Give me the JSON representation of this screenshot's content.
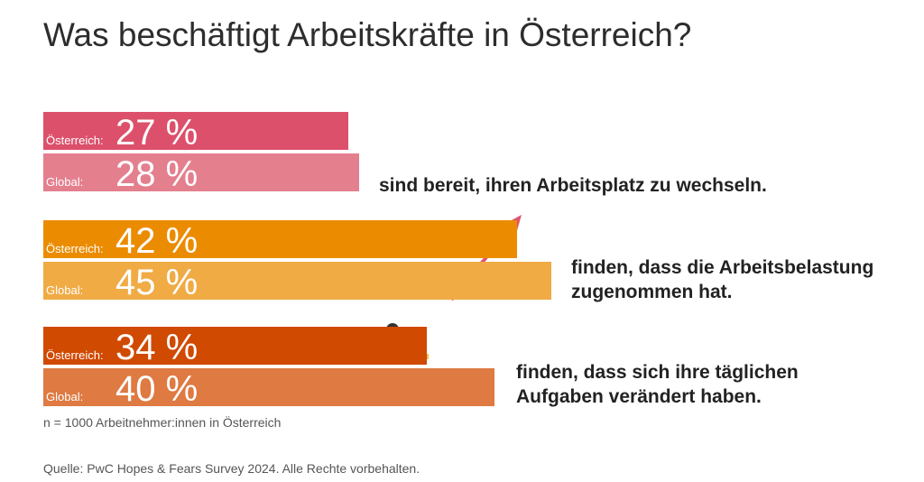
{
  "chart_data": {
    "type": "bar",
    "title": "Was beschäftigt Arbeitskräfte in Österreich?",
    "categories": [
      "sind bereit, ihren Arbeitsplatz zu wechseln.",
      "finden, dass die Arbeitsbelastung zugenommen hat.",
      "finden, dass sich ihre täglichen Aufgaben verändert haben."
    ],
    "series": [
      {
        "name": "Österreich:",
        "colors": [
          "#dc506b",
          "#eb8c00",
          "#d04a02"
        ],
        "values": [
          27,
          42,
          34
        ],
        "value_labels": [
          "27 %",
          "42 %",
          "34 %"
        ]
      },
      {
        "name": "Global:",
        "colors": [
          "#e47f8e",
          "#f0ab45",
          "#de7a42"
        ],
        "values": [
          28,
          45,
          40
        ],
        "value_labels": [
          "28 %",
          "45 %",
          "40 %"
        ]
      }
    ],
    "note": "n = 1000 Arbeitnehmer:innen in Österreich",
    "source": "Quelle: PwC Hopes & Fears Survey 2024. Alle Rechte vorbehalten."
  }
}
